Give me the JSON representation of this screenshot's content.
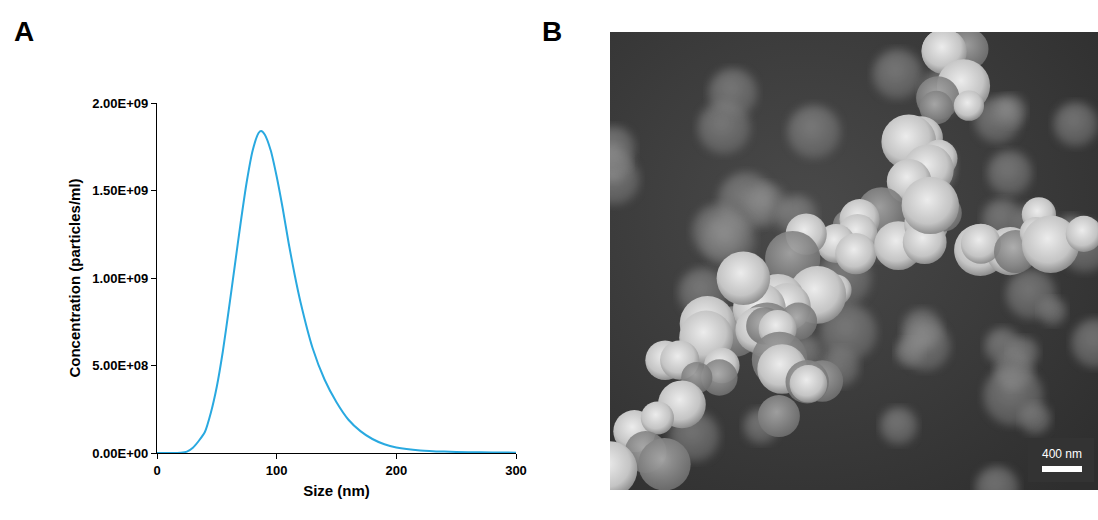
{
  "chart_data": {
    "type": "line",
    "panel": "A",
    "x_label": "Size (nm)",
    "y_label": "Concentration (particles/ml)",
    "x": [
      0,
      10,
      20,
      25,
      30,
      35,
      40,
      45,
      50,
      55,
      60,
      65,
      70,
      75,
      80,
      85,
      87,
      90,
      95,
      100,
      105,
      110,
      115,
      120,
      130,
      140,
      150,
      160,
      170,
      180,
      190,
      200,
      220,
      240,
      260,
      280,
      300
    ],
    "values": [
      0,
      0,
      2000000,
      8000000,
      30000000,
      70000000,
      120000000,
      230000000,
      380000000,
      580000000,
      820000000,
      1070000000,
      1320000000,
      1550000000,
      1730000000,
      1830000000,
      1840000000,
      1820000000,
      1730000000,
      1580000000,
      1400000000,
      1200000000,
      1020000000,
      860000000,
      600000000,
      420000000,
      290000000,
      190000000,
      125000000,
      80000000,
      50000000,
      32000000,
      15000000,
      8000000,
      5000000,
      3000000,
      2000000
    ],
    "color": "#29a9e0",
    "xlim": [
      0,
      300
    ],
    "xticks": [
      0,
      100,
      200,
      300
    ],
    "ylim": [
      0,
      2000000000
    ],
    "yticks": [
      {
        "value": 0,
        "label": "0.00E+00"
      },
      {
        "value": 500000000,
        "label": "5.00E+08"
      },
      {
        "value": 1000000000,
        "label": "1.00E+09"
      },
      {
        "value": 1500000000,
        "label": "1.50E+09"
      },
      {
        "value": 2000000000,
        "label": "2.00E+09"
      }
    ],
    "grid": false
  },
  "image": {
    "panel": "B",
    "scale_bar_label": "400 nm"
  }
}
